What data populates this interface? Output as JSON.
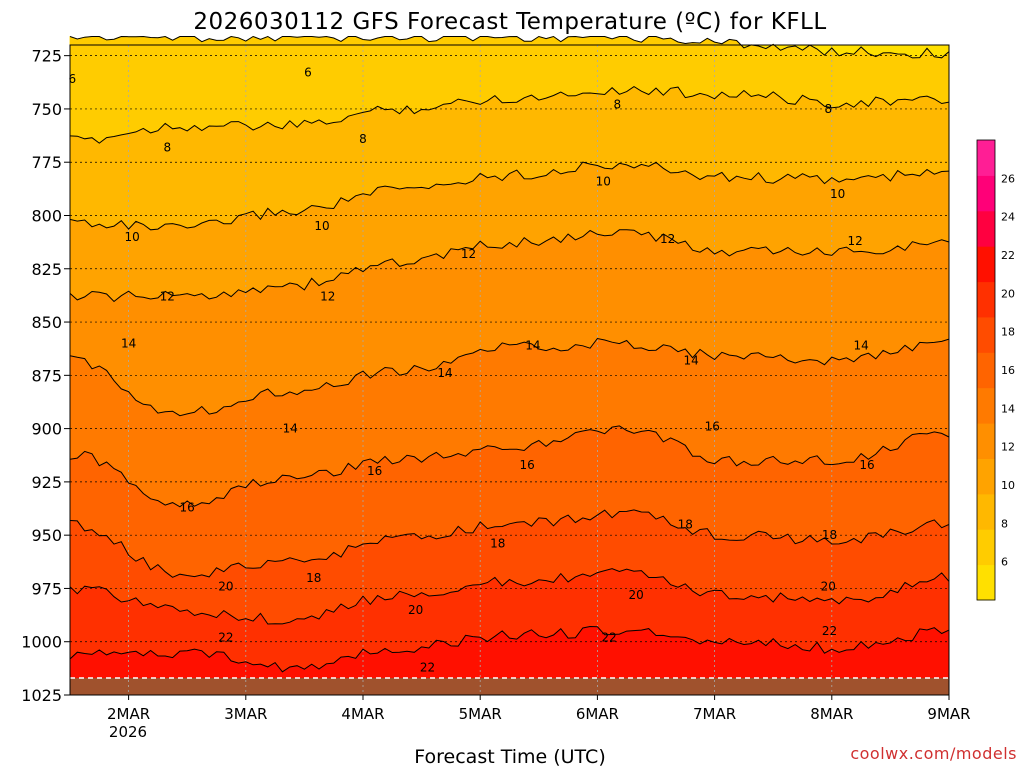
{
  "chart_data": {
    "type": "heatmap",
    "title": "2026030112 GFS Forecast Temperature (ºC) for KFLL",
    "xlabel": "Forecast Time (UTC)",
    "ylabel": "",
    "credit": "coolwx.com/models",
    "y_axis": {
      "values": [
        725,
        750,
        775,
        800,
        825,
        850,
        875,
        900,
        925,
        950,
        975,
        1000,
        1025
      ],
      "labels": [
        "725",
        "750",
        "775",
        "800",
        "825",
        "850",
        "875",
        "900",
        "925",
        "950",
        "975",
        "1000",
        "1025"
      ],
      "range": [
        720,
        1025
      ]
    },
    "x_axis": {
      "range": [
        -0.5,
        7.0
      ],
      "values": [
        0,
        1,
        2,
        3,
        4,
        5,
        6,
        7
      ],
      "labels": [
        "2MAR",
        "3MAR",
        "4MAR",
        "5MAR",
        "6MAR",
        "7MAR",
        "8MAR",
        "9MAR"
      ],
      "sublabel": "2026"
    },
    "colorbar": {
      "labels": [
        "6",
        "8",
        "10",
        "12",
        "14",
        "16",
        "18",
        "20",
        "22",
        "24",
        "26"
      ],
      "levels": [
        4,
        6,
        8,
        10,
        12,
        14,
        16,
        18,
        20,
        22,
        24,
        26,
        28
      ],
      "colors": [
        "#ffe000",
        "#ffcc00",
        "#ffb800",
        "#ffa300",
        "#ff8f00",
        "#ff7a00",
        "#ff6400",
        "#ff4c00",
        "#ff3000",
        "#ff1000",
        "#ff0040",
        "#ff0078",
        "#ff1e95"
      ]
    },
    "isotherms": [
      {
        "value": 6,
        "pressure": [
          716,
          716,
          716,
          716,
          716,
          716,
          719,
          723,
          724
        ]
      },
      {
        "value": 8,
        "pressure": [
          765,
          758,
          758,
          750,
          745,
          741,
          743,
          747,
          746
        ]
      },
      {
        "value": 10,
        "pressure": [
          803,
          806,
          798,
          788,
          781,
          776,
          782,
          783,
          780
        ]
      },
      {
        "value": 12,
        "pressure": [
          838,
          838,
          833,
          822,
          813,
          808,
          817,
          817,
          813
        ]
      },
      {
        "value": 14,
        "pressure": [
          868,
          893,
          882,
          873,
          862,
          860,
          866,
          868,
          860
        ]
      },
      {
        "value": 16,
        "pressure": [
          912,
          935,
          923,
          914,
          909,
          900,
          915,
          915,
          902
        ]
      },
      {
        "value": 18,
        "pressure": [
          945,
          968,
          963,
          952,
          945,
          940,
          950,
          953,
          944
        ]
      },
      {
        "value": 20,
        "pressure": [
          975,
          985,
          990,
          978,
          972,
          968,
          978,
          981,
          970
        ]
      },
      {
        "value": 22,
        "pressure": [
          1006,
          1005,
          1012,
          1003,
          997,
          995,
          1000,
          1003,
          995
        ]
      }
    ],
    "isotherm_labels": [
      {
        "text": "6",
        "x": -0.48,
        "p": 736
      },
      {
        "text": "6",
        "x": 1.53,
        "p": 733
      },
      {
        "text": "8",
        "x": 0.33,
        "p": 768
      },
      {
        "text": "8",
        "x": 2.0,
        "p": 764
      },
      {
        "text": "8",
        "x": 4.17,
        "p": 748
      },
      {
        "text": "8",
        "x": 5.97,
        "p": 750
      },
      {
        "text": "10",
        "x": 0.03,
        "p": 810
      },
      {
        "text": "10",
        "x": 1.65,
        "p": 805
      },
      {
        "text": "10",
        "x": 4.05,
        "p": 784
      },
      {
        "text": "10",
        "x": 6.05,
        "p": 790
      },
      {
        "text": "12",
        "x": 0.33,
        "p": 838
      },
      {
        "text": "12",
        "x": 1.7,
        "p": 838
      },
      {
        "text": "12",
        "x": 2.9,
        "p": 818
      },
      {
        "text": "12",
        "x": 4.6,
        "p": 811
      },
      {
        "text": "12",
        "x": 6.2,
        "p": 812
      },
      {
        "text": "14",
        "x": 0.0,
        "p": 860
      },
      {
        "text": "14",
        "x": 1.38,
        "p": 900
      },
      {
        "text": "14",
        "x": 2.7,
        "p": 874
      },
      {
        "text": "14",
        "x": 3.45,
        "p": 861
      },
      {
        "text": "14",
        "x": 4.8,
        "p": 868
      },
      {
        "text": "14",
        "x": 6.25,
        "p": 861
      },
      {
        "text": "16",
        "x": 0.5,
        "p": 937
      },
      {
        "text": "16",
        "x": 2.1,
        "p": 920
      },
      {
        "text": "16",
        "x": 3.4,
        "p": 917
      },
      {
        "text": "16",
        "x": 4.98,
        "p": 899
      },
      {
        "text": "16",
        "x": 6.3,
        "p": 917
      },
      {
        "text": "18",
        "x": 1.58,
        "p": 970
      },
      {
        "text": "18",
        "x": 3.15,
        "p": 954
      },
      {
        "text": "18",
        "x": 4.75,
        "p": 945
      },
      {
        "text": "18",
        "x": 5.98,
        "p": 950
      },
      {
        "text": "20",
        "x": 0.83,
        "p": 974
      },
      {
        "text": "20",
        "x": 2.45,
        "p": 985
      },
      {
        "text": "20",
        "x": 4.33,
        "p": 978
      },
      {
        "text": "20",
        "x": 5.97,
        "p": 974
      },
      {
        "text": "22",
        "x": 0.83,
        "p": 998
      },
      {
        "text": "22",
        "x": 2.55,
        "p": 1012
      },
      {
        "text": "22",
        "x": 4.1,
        "p": 998
      },
      {
        "text": "22",
        "x": 5.98,
        "p": 995
      }
    ],
    "ground_pressure": 1017
  }
}
